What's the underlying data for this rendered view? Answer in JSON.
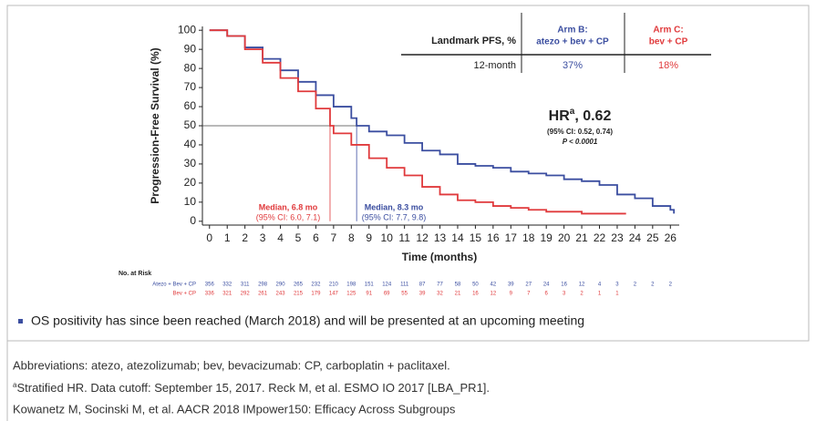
{
  "chart_data": {
    "type": "step",
    "ylabel": "Progression-Free Survival (%)",
    "xlabel": "Time (months)",
    "xlim": [
      -0.4,
      26.5
    ],
    "ylim": [
      -2,
      102
    ],
    "xticks": [
      0,
      1,
      2,
      3,
      4,
      5,
      6,
      7,
      8,
      9,
      10,
      11,
      12,
      13,
      14,
      15,
      16,
      17,
      18,
      19,
      20,
      21,
      22,
      23,
      24,
      25,
      26
    ],
    "yticks": [
      0,
      10,
      20,
      30,
      40,
      50,
      60,
      70,
      80,
      90,
      100
    ],
    "reference_y": 50,
    "series": [
      {
        "name": "Atezo + Bev + CP",
        "color": "#3b4ea0",
        "x": [
          0,
          1,
          2,
          3,
          4,
          5,
          6,
          7,
          8,
          8.3,
          9,
          10,
          11,
          12,
          13,
          14,
          15,
          16,
          17,
          18,
          19,
          20,
          21,
          22,
          23,
          24,
          25,
          26,
          26.2
        ],
        "values": [
          100,
          97,
          91,
          85,
          79,
          73,
          66,
          60,
          54,
          50,
          47,
          45,
          41,
          37,
          35,
          30,
          29,
          28,
          26,
          25,
          24,
          22,
          21,
          19,
          14,
          12,
          8,
          6,
          4
        ],
        "median": 8.3
      },
      {
        "name": "Bev + CP",
        "color": "#e03a3c",
        "x": [
          0,
          1,
          2,
          3,
          4,
          5,
          6,
          6.8,
          7,
          8,
          9,
          10,
          11,
          12,
          13,
          14,
          15,
          16,
          17,
          18,
          19,
          20,
          21,
          22,
          23,
          23.5
        ],
        "values": [
          100,
          97,
          90,
          83,
          75,
          68,
          59,
          50,
          46,
          40,
          33,
          28,
          24,
          18,
          14,
          11,
          10,
          8,
          7,
          6,
          5,
          5,
          4,
          4,
          4,
          4
        ],
        "median": 6.8
      }
    ],
    "annotations": {
      "hr_label": "HR",
      "hr_sup": "a",
      "hr_value": ", 0.62",
      "hr_ci": "(95% CI: 0.52, 0.74)",
      "hr_p": "P < 0.0001",
      "median_b": "Median, 8.3 mo",
      "median_b_ci": "(95% CI: 7.7, 9.8)",
      "median_c": "Median, 6.8 mo",
      "median_c_ci": "(95% CI: 6.0, 7.1)"
    },
    "landmark_table": {
      "header": [
        "Landmark PFS, %",
        [
          "Arm B:",
          "atezo + bev + CP"
        ],
        [
          "Arm C:",
          "bev + CP"
        ]
      ],
      "row": [
        "12-month",
        "37%",
        "18%"
      ]
    },
    "risk_table": {
      "title": "No. at Risk",
      "rows": [
        {
          "label": "Atezo + Bev + CP",
          "values": [
            356,
            332,
            311,
            298,
            290,
            265,
            232,
            210,
            198,
            151,
            124,
            111,
            87,
            77,
            58,
            50,
            42,
            39,
            27,
            24,
            16,
            12,
            4,
            3,
            2,
            2,
            2
          ]
        },
        {
          "label": "Bev + CP",
          "values": [
            336,
            321,
            292,
            261,
            243,
            215,
            179,
            147,
            125,
            91,
            69,
            55,
            39,
            32,
            21,
            16,
            12,
            9,
            7,
            6,
            3,
            2,
            1,
            1
          ]
        }
      ]
    }
  },
  "document": {
    "bullet": "OS positivity has since been reached (March 2018) and will be presented at an upcoming meeting",
    "abbreviations": "Abbreviations: atezo, atezolizumab; bev, bevacizumab: CP, carboplatin + paclitaxel.",
    "footnote_sup": "a",
    "footnote": "Stratified HR. Data cutoff: September 15, 2017. Reck M, et al. ESMO IO 2017 [LBA_PR1].",
    "reference": "Kowanetz M, Socinski M, et al. AACR 2018 IMpower150: Efficacy Across Subgroups"
  }
}
